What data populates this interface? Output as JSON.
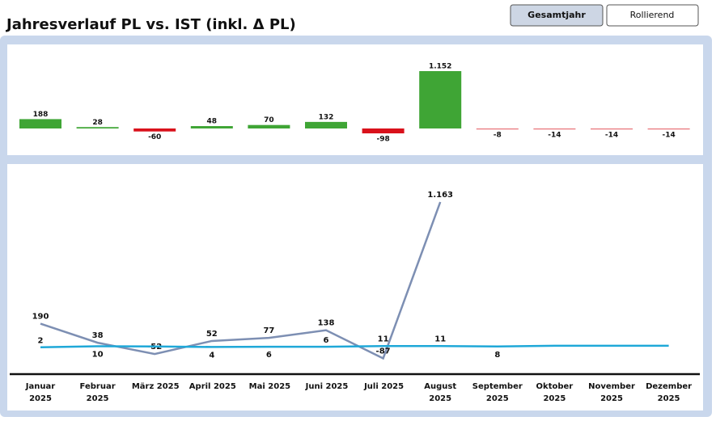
{
  "header": {
    "title": "Jahresverlauf PL vs. IST (inkl. Δ PL)",
    "buttons": [
      "Gesamtjahr",
      "Rollierend"
    ]
  },
  "chart_data": [
    {
      "type": "bar",
      "categories": [
        "Januar 2025",
        "Februar 2025",
        "März 2025",
        "April 2025",
        "Mai 2025",
        "Juni 2025",
        "Juli 2025",
        "August 2025",
        "September 2025",
        "Oktober 2025",
        "November 2025",
        "Dezember 2025"
      ],
      "values": [
        188,
        28,
        -60,
        48,
        70,
        132,
        -98,
        1152,
        -8,
        -14,
        -14,
        -14
      ],
      "value_labels": [
        "188",
        "28",
        "-60",
        "48",
        "70",
        "132",
        "-98",
        "1.152",
        "-8",
        "-14",
        "-14",
        "-14"
      ],
      "positive_color": "#3fa535",
      "negative_color": "#d9111b"
    },
    {
      "type": "line",
      "categories": [
        "Januar 2025",
        "Februar 2025",
        "März 2025",
        "April 2025",
        "Mai 2025",
        "Juni 2025",
        "Juli 2025",
        "August 2025",
        "September 2025",
        "Oktober 2025",
        "November 2025",
        "Dezember 2025"
      ],
      "series": [
        {
          "color": "#7d8fb3",
          "values": [
            190,
            38,
            -52,
            52,
            77,
            138,
            -87,
            1163,
            null,
            null,
            null,
            null
          ],
          "value_labels": [
            "190",
            "38",
            "-52",
            "52",
            "77",
            "138",
            "-87",
            "1.163",
            null,
            null,
            null,
            null
          ]
        },
        {
          "color": "#1fa8d8",
          "values": [
            2,
            10,
            8,
            4,
            6,
            6,
            11,
            11,
            8,
            14,
            14,
            14
          ],
          "value_labels": [
            "2",
            "10",
            null,
            "4",
            "6",
            "6",
            "11",
            "11",
            "8",
            null,
            null,
            null
          ]
        }
      ]
    }
  ]
}
